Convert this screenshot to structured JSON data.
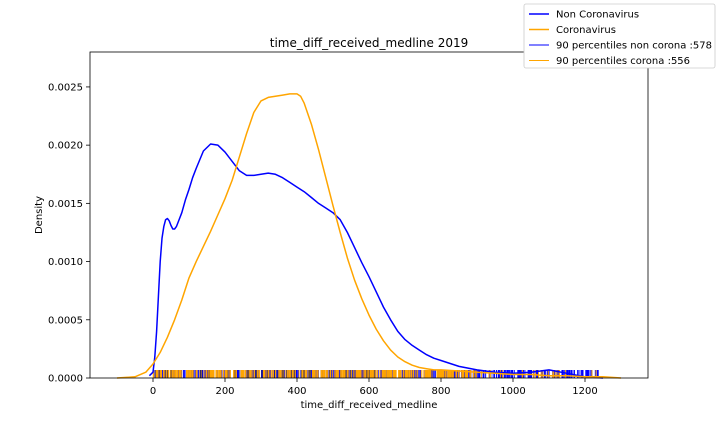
{
  "chart_data": {
    "type": "line",
    "title": "time_diff_received_medline 2019",
    "xlabel": "time_diff_received_medline",
    "ylabel": "Density",
    "xlim": [
      -175,
      1375
    ],
    "ylim": [
      0,
      0.0028
    ],
    "xticks": [
      0,
      200,
      400,
      600,
      800,
      1000,
      1200
    ],
    "xtick_labels": [
      "0",
      "200",
      "400",
      "600",
      "800",
      "1000",
      "1200"
    ],
    "yticks": [
      0,
      0.0005,
      0.001,
      0.0015,
      0.002,
      0.0025
    ],
    "ytick_labels": [
      "0.0000",
      "0.0005",
      "0.0010",
      "0.0015",
      "0.0020",
      "0.0025"
    ],
    "grid": false,
    "legend": "top-right",
    "series": [
      {
        "name": "Non Coronavirus",
        "color": "#0000ff",
        "x": [
          -10,
          0,
          5,
          10,
          15,
          20,
          25,
          30,
          35,
          40,
          45,
          50,
          55,
          60,
          65,
          70,
          80,
          90,
          100,
          110,
          120,
          140,
          160,
          180,
          200,
          220,
          240,
          260,
          280,
          300,
          320,
          340,
          360,
          380,
          400,
          420,
          440,
          460,
          480,
          500,
          520,
          540,
          560,
          580,
          600,
          620,
          640,
          660,
          680,
          700,
          720,
          740,
          760,
          780,
          800,
          850,
          900,
          950,
          1000,
          1050,
          1100,
          1150,
          1200,
          1250
        ],
        "y": [
          2e-05,
          5e-05,
          0.00018,
          0.0004,
          0.0007,
          0.001,
          0.0012,
          0.0013,
          0.00136,
          0.00137,
          0.00135,
          0.00131,
          0.00128,
          0.00128,
          0.0013,
          0.00134,
          0.00142,
          0.00153,
          0.00162,
          0.00172,
          0.0018,
          0.00195,
          0.00201,
          0.002,
          0.00194,
          0.00186,
          0.00178,
          0.00174,
          0.00174,
          0.00175,
          0.00176,
          0.00175,
          0.00172,
          0.00168,
          0.00164,
          0.0016,
          0.00155,
          0.0015,
          0.00146,
          0.00142,
          0.00136,
          0.00125,
          0.00112,
          0.00099,
          0.00087,
          0.00074,
          0.00061,
          0.0005,
          0.0004,
          0.00033,
          0.00028,
          0.00024,
          0.0002,
          0.00017,
          0.00015,
          0.0001,
          7e-05,
          5e-05,
          4e-05,
          5e-05,
          7e-05,
          4e-05,
          1e-05,
          0.0
        ]
      },
      {
        "name": "Coronavirus",
        "color": "#ffa500",
        "x": [
          -100,
          -50,
          -20,
          0,
          20,
          40,
          60,
          80,
          100,
          120,
          140,
          160,
          180,
          200,
          220,
          240,
          260,
          280,
          300,
          320,
          340,
          360,
          380,
          400,
          410,
          420,
          440,
          460,
          480,
          500,
          520,
          540,
          560,
          580,
          600,
          620,
          640,
          660,
          680,
          700,
          720,
          740,
          760,
          780,
          800,
          850,
          900,
          950,
          1000,
          1050,
          1100,
          1150,
          1200,
          1250,
          1300
        ],
        "y": [
          0.0,
          1e-05,
          5e-05,
          0.00012,
          0.00022,
          0.00035,
          0.0005,
          0.00067,
          0.00086,
          0.001,
          0.00113,
          0.00126,
          0.0014,
          0.00154,
          0.0017,
          0.0019,
          0.0021,
          0.00228,
          0.00238,
          0.00241,
          0.00242,
          0.00243,
          0.00244,
          0.00244,
          0.00242,
          0.00236,
          0.00218,
          0.00196,
          0.00172,
          0.00148,
          0.00125,
          0.00103,
          0.00084,
          0.00068,
          0.00054,
          0.00042,
          0.00032,
          0.00024,
          0.00018,
          0.00014,
          0.00011,
          9e-05,
          8e-05,
          7e-05,
          7e-05,
          6e-05,
          5e-05,
          4e-05,
          3e-05,
          3e-05,
          2e-05,
          2e-05,
          1e-05,
          1e-05,
          0.0
        ]
      },
      {
        "name": "90 percentiles non corona :578",
        "color": "#0000ff",
        "kind": "rug",
        "rug_range": [
          0,
          1240
        ],
        "rug_density": "dense to 650, sparse to 1240"
      },
      {
        "name": "90 percentiles corona :556",
        "color": "#ffa500",
        "kind": "rug",
        "rug_range": [
          0,
          1240
        ],
        "rug_density": "dense to 900, sparse to 1240"
      }
    ]
  }
}
